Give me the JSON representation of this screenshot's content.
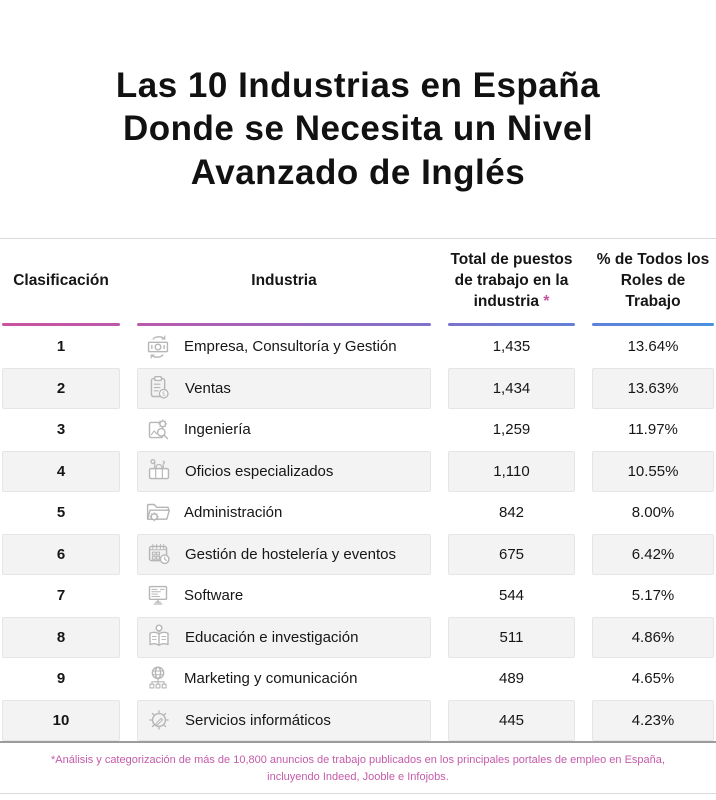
{
  "title": "Las 10 Industrias en España\nDonde se Necesita un Nivel\nAvanzado de Inglés",
  "table": {
    "headers": [
      "Clasificación",
      "Industria",
      "Total de puestos de trabajo en la industria",
      "% de Todos los Roles de Trabajo"
    ],
    "header_note_marker": "*",
    "rows": [
      {
        "rank": "1",
        "icon": "money-exchange-icon",
        "industry": "Empresa, Consultoría y Gestión",
        "jobs": "1,435",
        "pct": "13.64%"
      },
      {
        "rank": "2",
        "icon": "sales-clipboard-icon",
        "industry": "Ventas",
        "jobs": "1,434",
        "pct": "13.63%"
      },
      {
        "rank": "3",
        "icon": "engineering-blueprint-icon",
        "industry": "Ingeniería",
        "jobs": "1,259",
        "pct": "11.97%"
      },
      {
        "rank": "4",
        "icon": "toolbox-icon",
        "industry": "Oficios especializados",
        "jobs": "1,110",
        "pct": "10.55%"
      },
      {
        "rank": "5",
        "icon": "folder-gear-icon",
        "industry": "Administración",
        "jobs": "842",
        "pct": "8.00%"
      },
      {
        "rank": "6",
        "icon": "calendar-clock-icon",
        "industry": "Gestión de hostelería y eventos",
        "jobs": "675",
        "pct": "6.42%"
      },
      {
        "rank": "7",
        "icon": "monitor-code-icon",
        "industry": "Software",
        "jobs": "544",
        "pct": "5.17%"
      },
      {
        "rank": "8",
        "icon": "book-lightbulb-icon",
        "industry": "Educación e investigación",
        "jobs": "511",
        "pct": "4.86%"
      },
      {
        "rank": "9",
        "icon": "globe-network-icon",
        "industry": "Marketing y comunicación",
        "jobs": "489",
        "pct": "4.65%"
      },
      {
        "rank": "10",
        "icon": "gear-tool-icon",
        "industry": "Servicios informáticos",
        "jobs": "445",
        "pct": "4.23%"
      }
    ]
  },
  "footnote": "*Análisis y categorización de más de 10,800 anuncios de trabajo publicados en los principales portales de empleo en España,\nincluyendo Indeed, Jooble e Infojobs.",
  "colors": {
    "accent_pink": "#c6549f",
    "accent_blue": "#4a90e2",
    "stripe_gray": "#f3f3f3",
    "icon_gray": "#b6b6b6",
    "divider_gray": "#d9d9d9",
    "table_bottom_gray": "#9c9c9c"
  },
  "chart_data": {
    "type": "table",
    "title": "Las 10 Industrias en España Donde se Necesita un Nivel Avanzado de Inglés",
    "columns": [
      "Clasificación",
      "Industria",
      "Total de puestos de trabajo en la industria *",
      "% de Todos los Roles de Trabajo"
    ],
    "rows": [
      [
        1,
        "Empresa, Consultoría y Gestión",
        1435,
        13.64
      ],
      [
        2,
        "Ventas",
        1434,
        13.63
      ],
      [
        3,
        "Ingeniería",
        1259,
        11.97
      ],
      [
        4,
        "Oficios especializados",
        1110,
        10.55
      ],
      [
        5,
        "Administración",
        842,
        8.0
      ],
      [
        6,
        "Gestión de hostelería y eventos",
        675,
        6.42
      ],
      [
        7,
        "Software",
        544,
        5.17
      ],
      [
        8,
        "Educación e investigación",
        511,
        4.86
      ],
      [
        9,
        "Marketing y comunicación",
        489,
        4.65
      ],
      [
        10,
        "Servicios informáticos",
        445,
        4.23
      ]
    ],
    "footnote": "*Análisis y categorización de más de 10,800 anuncios de trabajo publicados en los principales portales de empleo en España, incluyendo Indeed, Jooble e Infojobs."
  }
}
